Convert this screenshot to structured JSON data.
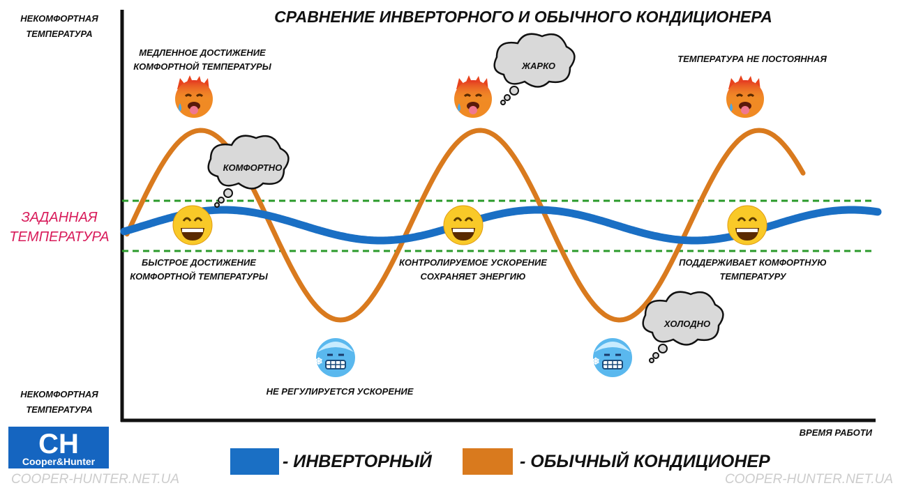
{
  "header": {
    "title": "СРАВНЕНИЕ ИНВЕРТОРНОГО И ОБЫЧНОГО КОНДИЦИОНЕРА"
  },
  "axis": {
    "top_label": [
      "НЕКОМФОРТНАЯ",
      "ТЕМПЕРАТУРА"
    ],
    "middle_label": [
      "ЗАДАННАЯ",
      "ТЕМПЕРАТУРА"
    ],
    "bottom_label": [
      "НЕКОМФОРТНАЯ",
      "ТЕМПЕРАТУРА"
    ],
    "x_label": "ВРЕМЯ РАБОТИ"
  },
  "annotations": {
    "slow": [
      "МЕДЛЕННОЕ ДОСТИЖЕНИЕ",
      "КОМФОРТНОЙ ТЕМПЕРАТУРЫ"
    ],
    "unstable": [
      "ТЕМПЕРАТУРА НЕ ПОСТОЯННАЯ"
    ],
    "fast": [
      "БЫСТРОЕ ДОСТИЖЕНИЕ",
      "КОМФОРТНОЙ ТЕМПЕРАТУРЫ"
    ],
    "controlled": [
      "КОНТРОЛИРУЕМОЕ УСКОРЕНИЕ",
      "СОХРАНЯЕТ ЭНЕРГИЮ"
    ],
    "keeps": [
      "ПОДДЕРЖИВАЕТ КОМФОРТНУЮ",
      "ТЕМПЕРАТУРУ"
    ],
    "unregulated": [
      "НЕ РЕГУЛИРУЕТСЯ УСКОРЕНИЕ"
    ]
  },
  "clouds": {
    "comfort": "КОМФОРТНО",
    "hot": "ЖАРКО",
    "cold": "ХОЛОДНО"
  },
  "legend": {
    "inverter": "- ИНВЕРТОРНЫЙ",
    "regular": "- ОБЫЧНЫЙ КОНДИЦИОНЕР"
  },
  "logo": {
    "mark": "CH",
    "name": "Cooper&Hunter"
  },
  "watermark": [
    "COOPER-HUNTER.NET.UA",
    "COOPER-HUNTER.NET.UA"
  ]
}
